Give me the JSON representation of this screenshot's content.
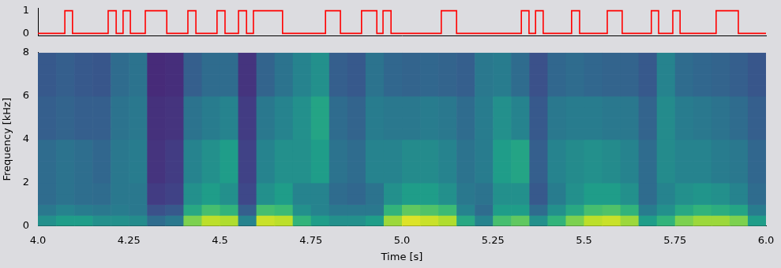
{
  "chart_data": [
    {
      "type": "line",
      "line_style": "steps",
      "color": "#ff0000",
      "grid": false,
      "tick_labels": "y",
      "x": [
        4,
        4.074,
        4.095,
        4.193,
        4.215,
        4.234,
        4.254,
        4.295,
        4.354,
        4.412,
        4.434,
        4.492,
        4.514,
        4.551,
        4.573,
        4.592,
        4.672,
        4.79,
        4.831,
        4.889,
        4.931,
        4.948,
        4.97,
        5.108,
        5.15,
        5.328,
        5.349,
        5.367,
        5.388,
        5.466,
        5.488,
        5.564,
        5.605,
        5.685,
        5.705,
        5.744,
        5.764,
        5.863,
        5.924,
        6
      ],
      "values": [
        0,
        1,
        0,
        1,
        0,
        1,
        0,
        1,
        0,
        1,
        0,
        1,
        0,
        1,
        0,
        1,
        0,
        1,
        0,
        1,
        0,
        1,
        0,
        1,
        0,
        1,
        0,
        1,
        0,
        1,
        0,
        1,
        0,
        1,
        0,
        1,
        0,
        1,
        0,
        0
      ],
      "xlim": [
        4,
        6
      ],
      "ylim": [
        -0.1,
        1.1
      ],
      "yticks": [
        0,
        1
      ]
    },
    {
      "type": "heatmap",
      "grid": false,
      "x_label": "Time [s]",
      "y_label": "Frequency [kHz]",
      "xlim": [
        4,
        6
      ],
      "ylim": [
        0,
        8
      ],
      "xticks": [
        {
          "value": 4,
          "label": "4.0"
        },
        4.25,
        4.5,
        4.75,
        {
          "value": 5,
          "label": "5.0"
        },
        5.25,
        5.5,
        5.75,
        {
          "value": 6,
          "label": "6.0"
        }
      ],
      "yticks": [
        0,
        2,
        4,
        6,
        8
      ],
      "x_bins": [
        4,
        4.05,
        4.1,
        4.15,
        4.2,
        4.25,
        4.3,
        4.35,
        4.4,
        4.45,
        4.5,
        4.55,
        4.6,
        4.65,
        4.7,
        4.75,
        4.8,
        4.85,
        4.9,
        4.95,
        5,
        5.05,
        5.1,
        5.15,
        5.2,
        5.25,
        5.3,
        5.35,
        5.4,
        5.45,
        5.5,
        5.55,
        5.6,
        5.65,
        5.7,
        5.75,
        5.8,
        5.85,
        5.9,
        5.95,
        6
      ],
      "y_bins": [
        0,
        0.5,
        1,
        1.5,
        2,
        2.5,
        3,
        3.5,
        4,
        4.5,
        5,
        5.5,
        6,
        6.5,
        7,
        7.5,
        8
      ],
      "cells": [
        [
          0.5,
          0.55,
          0.55,
          0.5,
          0.5,
          0.48,
          0.35,
          0.4,
          0.8,
          0.9,
          0.88,
          0.45,
          0.92,
          0.9,
          0.65,
          0.55,
          0.5,
          0.5,
          0.55,
          0.85,
          0.95,
          0.92,
          0.88,
          0.6,
          0.45,
          0.7,
          0.75,
          0.5,
          0.65,
          0.8,
          0.9,
          0.92,
          0.85,
          0.55,
          0.65,
          0.8,
          0.85,
          0.85,
          0.8,
          0.55
        ],
        [
          0.4,
          0.45,
          0.42,
          0.4,
          0.42,
          0.4,
          0.25,
          0.28,
          0.6,
          0.7,
          0.65,
          0.3,
          0.7,
          0.68,
          0.5,
          0.45,
          0.4,
          0.4,
          0.4,
          0.65,
          0.75,
          0.72,
          0.68,
          0.45,
          0.35,
          0.55,
          0.55,
          0.35,
          0.5,
          0.6,
          0.7,
          0.72,
          0.65,
          0.42,
          0.5,
          0.6,
          0.65,
          0.62,
          0.58,
          0.42
        ],
        [
          0.35,
          0.38,
          0.36,
          0.35,
          0.4,
          0.4,
          0.18,
          0.2,
          0.5,
          0.55,
          0.5,
          0.22,
          0.5,
          0.55,
          0.45,
          0.45,
          0.35,
          0.33,
          0.38,
          0.5,
          0.55,
          0.55,
          0.5,
          0.4,
          0.38,
          0.5,
          0.5,
          0.28,
          0.42,
          0.5,
          0.55,
          0.55,
          0.5,
          0.35,
          0.45,
          0.5,
          0.52,
          0.5,
          0.45,
          0.35
        ],
        [
          0.35,
          0.38,
          0.36,
          0.35,
          0.4,
          0.4,
          0.18,
          0.2,
          0.5,
          0.55,
          0.5,
          0.22,
          0.5,
          0.55,
          0.45,
          0.45,
          0.35,
          0.33,
          0.38,
          0.5,
          0.55,
          0.55,
          0.5,
          0.4,
          0.38,
          0.5,
          0.5,
          0.28,
          0.42,
          0.5,
          0.55,
          0.55,
          0.5,
          0.35,
          0.45,
          0.5,
          0.52,
          0.5,
          0.45,
          0.35
        ],
        [
          0.35,
          0.38,
          0.36,
          0.33,
          0.4,
          0.42,
          0.15,
          0.18,
          0.45,
          0.5,
          0.55,
          0.2,
          0.45,
          0.5,
          0.5,
          0.55,
          0.38,
          0.35,
          0.45,
          0.45,
          0.48,
          0.48,
          0.45,
          0.38,
          0.42,
          0.55,
          0.58,
          0.3,
          0.45,
          0.48,
          0.5,
          0.48,
          0.45,
          0.35,
          0.48,
          0.45,
          0.45,
          0.42,
          0.4,
          0.33
        ],
        [
          0.35,
          0.38,
          0.36,
          0.33,
          0.4,
          0.42,
          0.15,
          0.18,
          0.45,
          0.5,
          0.55,
          0.2,
          0.45,
          0.5,
          0.5,
          0.55,
          0.38,
          0.35,
          0.45,
          0.45,
          0.48,
          0.48,
          0.45,
          0.38,
          0.42,
          0.55,
          0.58,
          0.3,
          0.45,
          0.48,
          0.5,
          0.48,
          0.45,
          0.35,
          0.48,
          0.45,
          0.45,
          0.42,
          0.4,
          0.33
        ],
        [
          0.35,
          0.38,
          0.36,
          0.33,
          0.4,
          0.42,
          0.15,
          0.18,
          0.45,
          0.5,
          0.55,
          0.2,
          0.45,
          0.5,
          0.5,
          0.55,
          0.38,
          0.35,
          0.45,
          0.45,
          0.48,
          0.48,
          0.45,
          0.38,
          0.42,
          0.55,
          0.58,
          0.3,
          0.45,
          0.48,
          0.5,
          0.48,
          0.45,
          0.35,
          0.48,
          0.45,
          0.45,
          0.42,
          0.4,
          0.33
        ],
        [
          0.35,
          0.38,
          0.36,
          0.33,
          0.4,
          0.42,
          0.15,
          0.18,
          0.45,
          0.5,
          0.55,
          0.2,
          0.45,
          0.5,
          0.5,
          0.55,
          0.38,
          0.35,
          0.45,
          0.45,
          0.48,
          0.48,
          0.45,
          0.38,
          0.42,
          0.55,
          0.58,
          0.3,
          0.45,
          0.48,
          0.5,
          0.48,
          0.45,
          0.35,
          0.48,
          0.45,
          0.45,
          0.42,
          0.4,
          0.33
        ],
        [
          0.3,
          0.32,
          0.3,
          0.3,
          0.38,
          0.4,
          0.14,
          0.15,
          0.38,
          0.42,
          0.45,
          0.18,
          0.4,
          0.45,
          0.5,
          0.58,
          0.35,
          0.32,
          0.42,
          0.4,
          0.4,
          0.42,
          0.4,
          0.35,
          0.42,
          0.5,
          0.45,
          0.28,
          0.4,
          0.42,
          0.42,
          0.4,
          0.4,
          0.32,
          0.48,
          0.42,
          0.4,
          0.38,
          0.35,
          0.3
        ],
        [
          0.3,
          0.32,
          0.3,
          0.3,
          0.38,
          0.4,
          0.14,
          0.15,
          0.38,
          0.42,
          0.45,
          0.18,
          0.4,
          0.45,
          0.5,
          0.58,
          0.35,
          0.32,
          0.42,
          0.4,
          0.4,
          0.42,
          0.4,
          0.35,
          0.42,
          0.5,
          0.45,
          0.28,
          0.4,
          0.42,
          0.42,
          0.4,
          0.4,
          0.32,
          0.48,
          0.42,
          0.4,
          0.38,
          0.35,
          0.3
        ],
        [
          0.3,
          0.32,
          0.3,
          0.3,
          0.38,
          0.4,
          0.14,
          0.15,
          0.38,
          0.42,
          0.45,
          0.18,
          0.4,
          0.45,
          0.5,
          0.58,
          0.35,
          0.32,
          0.42,
          0.4,
          0.4,
          0.42,
          0.4,
          0.35,
          0.42,
          0.5,
          0.45,
          0.28,
          0.4,
          0.42,
          0.42,
          0.4,
          0.4,
          0.32,
          0.48,
          0.42,
          0.4,
          0.38,
          0.35,
          0.3
        ],
        [
          0.3,
          0.32,
          0.3,
          0.3,
          0.38,
          0.4,
          0.14,
          0.15,
          0.38,
          0.42,
          0.45,
          0.18,
          0.4,
          0.45,
          0.5,
          0.58,
          0.35,
          0.32,
          0.42,
          0.4,
          0.4,
          0.42,
          0.4,
          0.35,
          0.42,
          0.5,
          0.45,
          0.28,
          0.4,
          0.42,
          0.42,
          0.4,
          0.4,
          0.32,
          0.48,
          0.42,
          0.4,
          0.38,
          0.35,
          0.3
        ],
        [
          0.28,
          0.3,
          0.28,
          0.27,
          0.35,
          0.38,
          0.12,
          0.13,
          0.3,
          0.35,
          0.35,
          0.15,
          0.32,
          0.38,
          0.45,
          0.5,
          0.3,
          0.28,
          0.38,
          0.33,
          0.32,
          0.33,
          0.32,
          0.3,
          0.4,
          0.42,
          0.35,
          0.25,
          0.33,
          0.35,
          0.33,
          0.32,
          0.32,
          0.28,
          0.45,
          0.35,
          0.33,
          0.32,
          0.3,
          0.27
        ],
        [
          0.28,
          0.3,
          0.28,
          0.27,
          0.35,
          0.38,
          0.12,
          0.13,
          0.3,
          0.35,
          0.35,
          0.15,
          0.32,
          0.38,
          0.45,
          0.5,
          0.3,
          0.28,
          0.38,
          0.33,
          0.32,
          0.33,
          0.32,
          0.3,
          0.4,
          0.42,
          0.35,
          0.25,
          0.33,
          0.35,
          0.33,
          0.32,
          0.32,
          0.28,
          0.45,
          0.35,
          0.33,
          0.32,
          0.3,
          0.27
        ],
        [
          0.28,
          0.3,
          0.28,
          0.27,
          0.35,
          0.38,
          0.12,
          0.13,
          0.3,
          0.35,
          0.35,
          0.15,
          0.32,
          0.38,
          0.45,
          0.5,
          0.3,
          0.28,
          0.38,
          0.33,
          0.32,
          0.33,
          0.32,
          0.3,
          0.4,
          0.42,
          0.35,
          0.25,
          0.33,
          0.35,
          0.33,
          0.32,
          0.32,
          0.28,
          0.45,
          0.35,
          0.33,
          0.32,
          0.3,
          0.27
        ],
        [
          0.28,
          0.3,
          0.28,
          0.27,
          0.35,
          0.38,
          0.12,
          0.13,
          0.3,
          0.35,
          0.35,
          0.15,
          0.32,
          0.38,
          0.45,
          0.5,
          0.3,
          0.28,
          0.38,
          0.33,
          0.32,
          0.33,
          0.32,
          0.3,
          0.4,
          0.42,
          0.35,
          0.25,
          0.33,
          0.35,
          0.33,
          0.32,
          0.32,
          0.28,
          0.45,
          0.35,
          0.33,
          0.32,
          0.3,
          0.27
        ]
      ]
    }
  ]
}
